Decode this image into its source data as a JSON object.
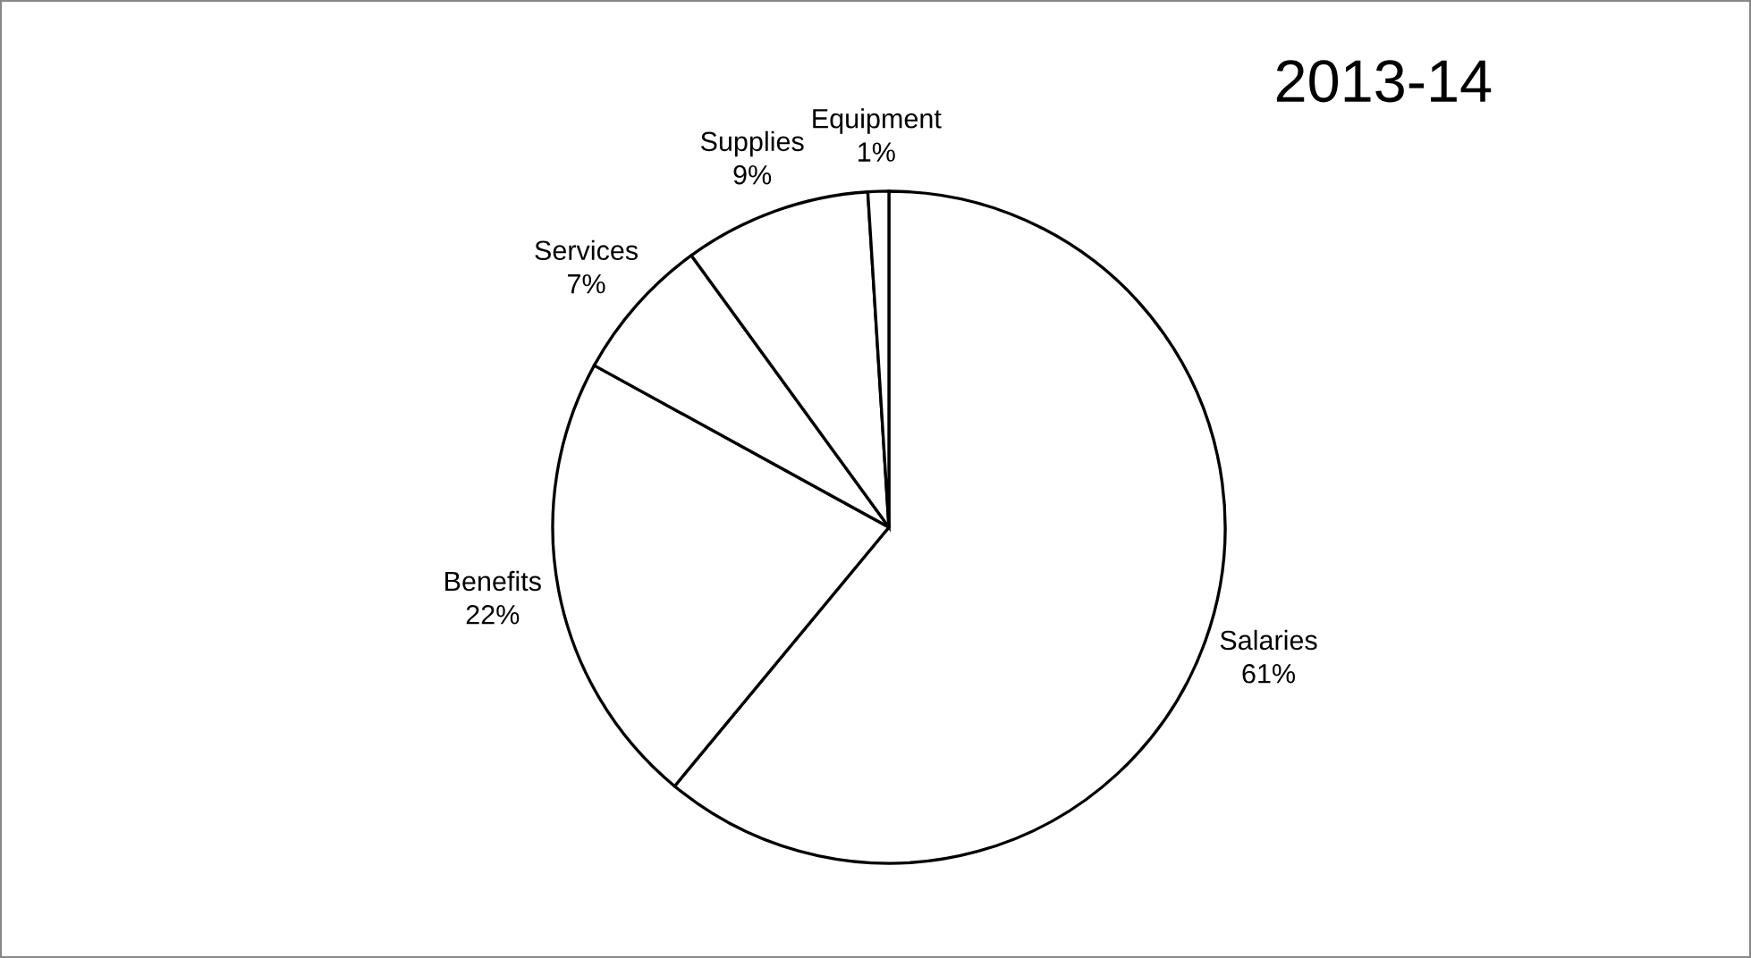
{
  "chart_data": {
    "type": "pie",
    "title": "2013-14",
    "categories": [
      "Salaries",
      "Benefits",
      "Services",
      "Supplies",
      "Equipment"
    ],
    "values": [
      61,
      22,
      7,
      9,
      1
    ],
    "value_labels": [
      "61%",
      "22%",
      "7%",
      "9%",
      "1%"
    ],
    "colors": [
      "#ffffff",
      "#ffffff",
      "#ffffff",
      "#ffffff",
      "#ffffff"
    ],
    "legend": false
  }
}
